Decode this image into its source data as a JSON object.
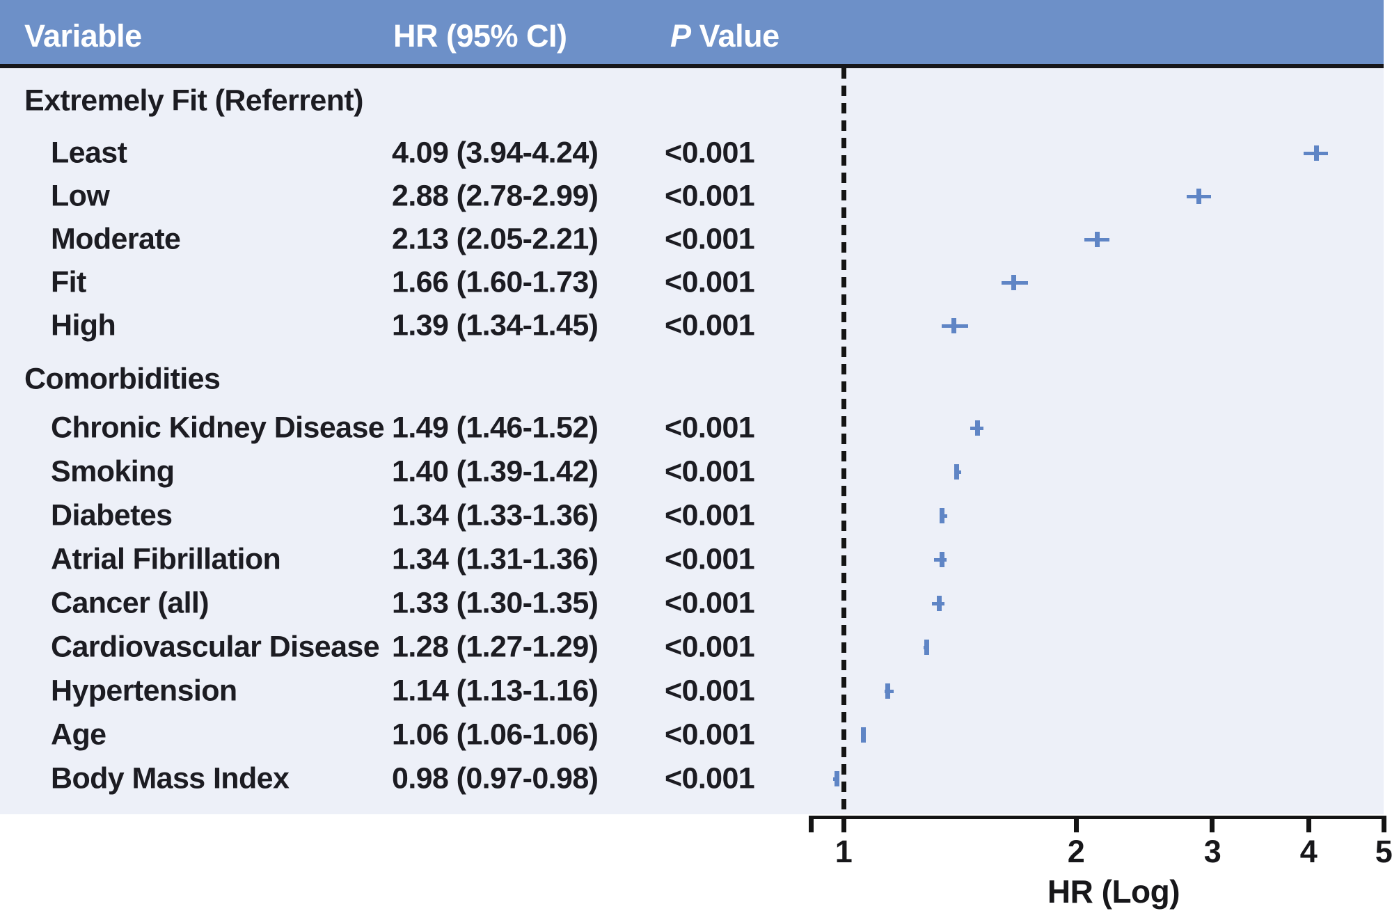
{
  "table": {
    "col_variable": "Variable",
    "col_hr": "HR (95% CI)",
    "col_p_italic": "P",
    "col_p_rest": " Value"
  },
  "colors": {
    "header_bg": "#6d90c8",
    "panel_bg": "#edf0f8",
    "marker_blue": "#5f85c5",
    "axis_black": "#141414",
    "text_dark": "#1c1c22",
    "header_text": "#ffffff"
  },
  "chart_data": {
    "type": "scatter",
    "subtype": "forest-plot",
    "axis": {
      "label": "HR (Log)",
      "scale": "log",
      "ticks": [
        "1",
        "2",
        "3",
        "4",
        "5"
      ],
      "tick_values": [
        1,
        2,
        3,
        4,
        5
      ],
      "range": [
        0.93,
        5
      ],
      "reference_value": 1,
      "reference_line_style": "dashed"
    },
    "rows": [
      {
        "type": "group",
        "label": "Extremely Fit (Referrent)",
        "hr_ci": "",
        "p": ""
      },
      {
        "type": "item",
        "label": "Least",
        "hr": 4.09,
        "lo": 3.94,
        "hi": 4.24,
        "hr_ci": "4.09 (3.94-4.24)",
        "p": "<0.001"
      },
      {
        "type": "item",
        "label": "Low",
        "hr": 2.88,
        "lo": 2.78,
        "hi": 2.99,
        "hr_ci": "2.88 (2.78-2.99)",
        "p": "<0.001"
      },
      {
        "type": "item",
        "label": "Moderate",
        "hr": 2.13,
        "lo": 2.05,
        "hi": 2.21,
        "hr_ci": "2.13 (2.05-2.21)",
        "p": "<0.001"
      },
      {
        "type": "item",
        "label": "Fit",
        "hr": 1.66,
        "lo": 1.6,
        "hi": 1.73,
        "hr_ci": "1.66 (1.60-1.73)",
        "p": "<0.001"
      },
      {
        "type": "item",
        "label": "High",
        "hr": 1.39,
        "lo": 1.34,
        "hi": 1.45,
        "hr_ci": "1.39 (1.34-1.45)",
        "p": "<0.001"
      },
      {
        "type": "group",
        "label": "Comorbidities",
        "hr_ci": "",
        "p": ""
      },
      {
        "type": "item",
        "label": "Chronic Kidney Disease",
        "hr": 1.49,
        "lo": 1.46,
        "hi": 1.52,
        "hr_ci": "1.49 (1.46-1.52)",
        "p": "<0.001"
      },
      {
        "type": "item",
        "label": "Smoking",
        "hr": 1.4,
        "lo": 1.39,
        "hi": 1.42,
        "hr_ci": "1.40 (1.39-1.42)",
        "p": "<0.001"
      },
      {
        "type": "item",
        "label": "Diabetes",
        "hr": 1.34,
        "lo": 1.33,
        "hi": 1.36,
        "hr_ci": "1.34 (1.33-1.36)",
        "p": "<0.001"
      },
      {
        "type": "item",
        "label": "Atrial Fibrillation",
        "hr": 1.34,
        "lo": 1.31,
        "hi": 1.36,
        "hr_ci": "1.34 (1.31-1.36)",
        "p": "<0.001"
      },
      {
        "type": "item",
        "label": "Cancer (all)",
        "hr": 1.33,
        "lo": 1.3,
        "hi": 1.35,
        "hr_ci": "1.33 (1.30-1.35)",
        "p": "<0.001"
      },
      {
        "type": "item",
        "label": "Cardiovascular Disease",
        "hr": 1.28,
        "lo": 1.27,
        "hi": 1.29,
        "hr_ci": "1.28 (1.27-1.29)",
        "p": "<0.001"
      },
      {
        "type": "item",
        "label": "Hypertension",
        "hr": 1.14,
        "lo": 1.13,
        "hi": 1.16,
        "hr_ci": "1.14 (1.13-1.16)",
        "p": "<0.001"
      },
      {
        "type": "item",
        "label": "Age",
        "hr": 1.06,
        "lo": 1.06,
        "hi": 1.06,
        "hr_ci": "1.06 (1.06-1.06)",
        "p": "<0.001"
      },
      {
        "type": "item",
        "label": "Body Mass Index",
        "hr": 0.98,
        "lo": 0.97,
        "hi": 0.98,
        "hr_ci": "0.98 (0.97-0.98)",
        "p": "<0.001"
      }
    ]
  }
}
